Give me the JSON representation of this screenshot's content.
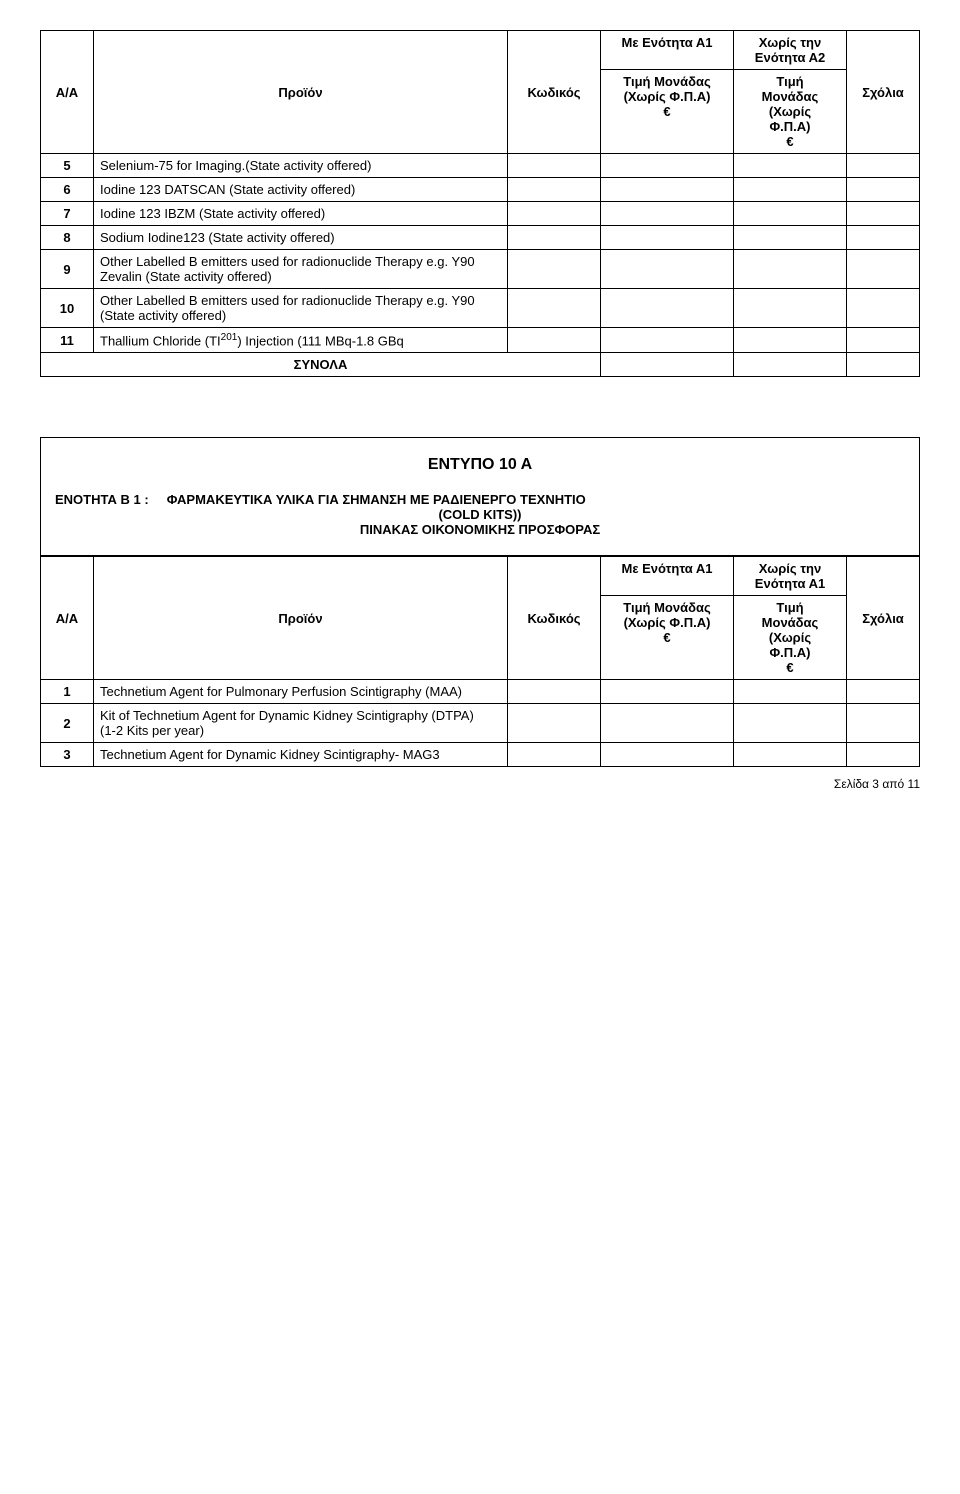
{
  "table1": {
    "head": {
      "aa": "Α/Α",
      "proion": "Προϊόν",
      "kodikos": "Κωδικός",
      "me_enot": "Με Ενότητα Α1",
      "xoris_enot": "Χωρίς την Ενότητα Α2",
      "timi_l1": "Τιμή Μονάδας",
      "timi_l2": "(Χωρίς Φ.Π.Α)",
      "timi_l3": "€",
      "timi2_l1": "Τιμή",
      "timi2_l2": "Μονάδας",
      "timi2_l3": "(Χωρίς",
      "timi2_l4": "Φ.Π.Α)",
      "timi2_l5": "€",
      "sxolia": "Σχόλια"
    },
    "rows": [
      {
        "aa": "5",
        "p": "Selenium-75 for Imaging.(State activity offered)"
      },
      {
        "aa": "6",
        "p": "Iodine 123 DATSCAN (State activity offered)"
      },
      {
        "aa": "7",
        "p": "Iodine 123 IBZM (State activity offered)"
      },
      {
        "aa": "8",
        "p": "Sodium Iodine123 (State activity offered)"
      },
      {
        "aa": "9",
        "p": "Other Labelled B emitters used for  radionuclide Therapy e.g. Y90 Zevalin (State activity offered)"
      },
      {
        "aa": "10",
        "p": "Other Labelled B emitters used for  radionuclide Therapy e.g. Y90 (State activity offered)"
      },
      {
        "aa": "11",
        "p_pre": "Thallium Chloride (TI",
        "p_sup": "201",
        "p_post": ") Injection (111 MBq-1.8 GBq"
      }
    ],
    "synola": "ΣΥΝΟΛΑ"
  },
  "box": {
    "title": "ΕΝΤΥΠΟ 10 Α",
    "line1_lead": "ΕΝΟΤΗΤΑ Β 1 :",
    "line1_rest": "ΦΑΡΜΑΚΕΥΤΙΚΑ ΥΛΙΚΑ ΓΙΑ ΣΗΜΑΝΣΗ ΜΕ ΡΑΔΙΕΝΕΡΓΟ ΤΕΧΝΗΤΙΟ",
    "line2": "(COLD  KITS))",
    "line3": "ΠΙΝΑΚΑΣ ΟΙΚΟΝΟΜΙΚΗΣ ΠΡΟΣΦΟΡΑΣ"
  },
  "table2": {
    "head": {
      "aa": "Α/Α",
      "proion": "Προϊόν",
      "kodikos": "Κωδικός",
      "me_enot": "Με Ενότητα Α1",
      "xoris_enot": "Χωρίς την Ενότητα Α1",
      "timi_l1": "Τιμή Μονάδας",
      "timi_l2": "(Χωρίς Φ.Π.Α)",
      "timi_l3": "€",
      "timi2_l1": "Τιμή",
      "timi2_l2": "Μονάδας",
      "timi2_l3": "(Χωρίς",
      "timi2_l4": "Φ.Π.Α)",
      "timi2_l5": "€",
      "sxolia": "Σχόλια"
    },
    "rows": [
      {
        "aa": "1",
        "p": "Technetium Agent for Pulmonary Perfusion Scintigraphy (MAA)"
      },
      {
        "aa": "2",
        "p": "Kit of Technetium Agent for Dynamic Kidney Scintigraphy (DTPA)\n (1-2 Kits per year)"
      },
      {
        "aa": "3",
        "p": "Technetium Agent for Dynamic Kidney Scintigraphy- MAG3"
      }
    ]
  },
  "footer": "Σελίδα 3 από 11"
}
